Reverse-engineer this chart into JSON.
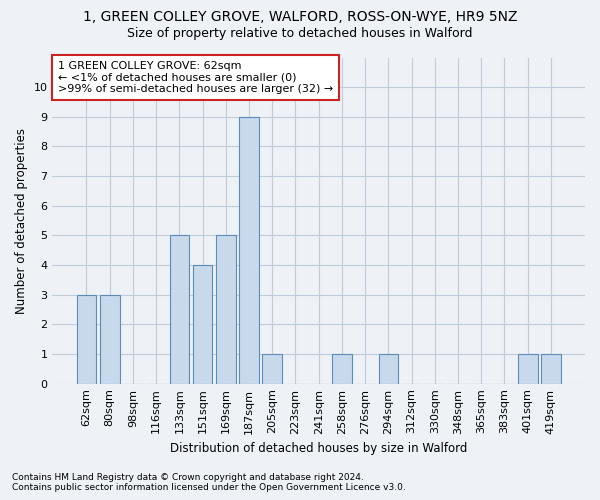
{
  "title": "1, GREEN COLLEY GROVE, WALFORD, ROSS-ON-WYE, HR9 5NZ",
  "subtitle": "Size of property relative to detached houses in Walford",
  "xlabel": "Distribution of detached houses by size in Walford",
  "ylabel": "Number of detached properties",
  "categories": [
    "62sqm",
    "80sqm",
    "98sqm",
    "116sqm",
    "133sqm",
    "151sqm",
    "169sqm",
    "187sqm",
    "205sqm",
    "223sqm",
    "241sqm",
    "258sqm",
    "276sqm",
    "294sqm",
    "312sqm",
    "330sqm",
    "348sqm",
    "365sqm",
    "383sqm",
    "401sqm",
    "419sqm"
  ],
  "values": [
    3,
    3,
    0,
    0,
    5,
    4,
    5,
    9,
    1,
    0,
    0,
    1,
    0,
    1,
    0,
    0,
    0,
    0,
    0,
    1,
    1
  ],
  "bar_color": "#c8d9ec",
  "bar_edge_color": "#5b8db8",
  "annotation_text": "1 GREEN COLLEY GROVE: 62sqm\n← <1% of detached houses are smaller (0)\n>99% of semi-detached houses are larger (32) →",
  "annotation_box_facecolor": "#ffffff",
  "annotation_box_edgecolor": "#cc2222",
  "ylim": [
    0,
    11
  ],
  "yticks": [
    0,
    1,
    2,
    3,
    4,
    5,
    6,
    7,
    8,
    9,
    10
  ],
  "grid_color": "#c0ccd8",
  "background_color": "#eef2f7",
  "footer_line1": "Contains HM Land Registry data © Crown copyright and database right 2024.",
  "footer_line2": "Contains public sector information licensed under the Open Government Licence v3.0.",
  "title_fontsize": 10,
  "subtitle_fontsize": 9,
  "xlabel_fontsize": 8.5,
  "ylabel_fontsize": 8.5,
  "tick_fontsize": 8,
  "annotation_fontsize": 8,
  "footer_fontsize": 6.5
}
